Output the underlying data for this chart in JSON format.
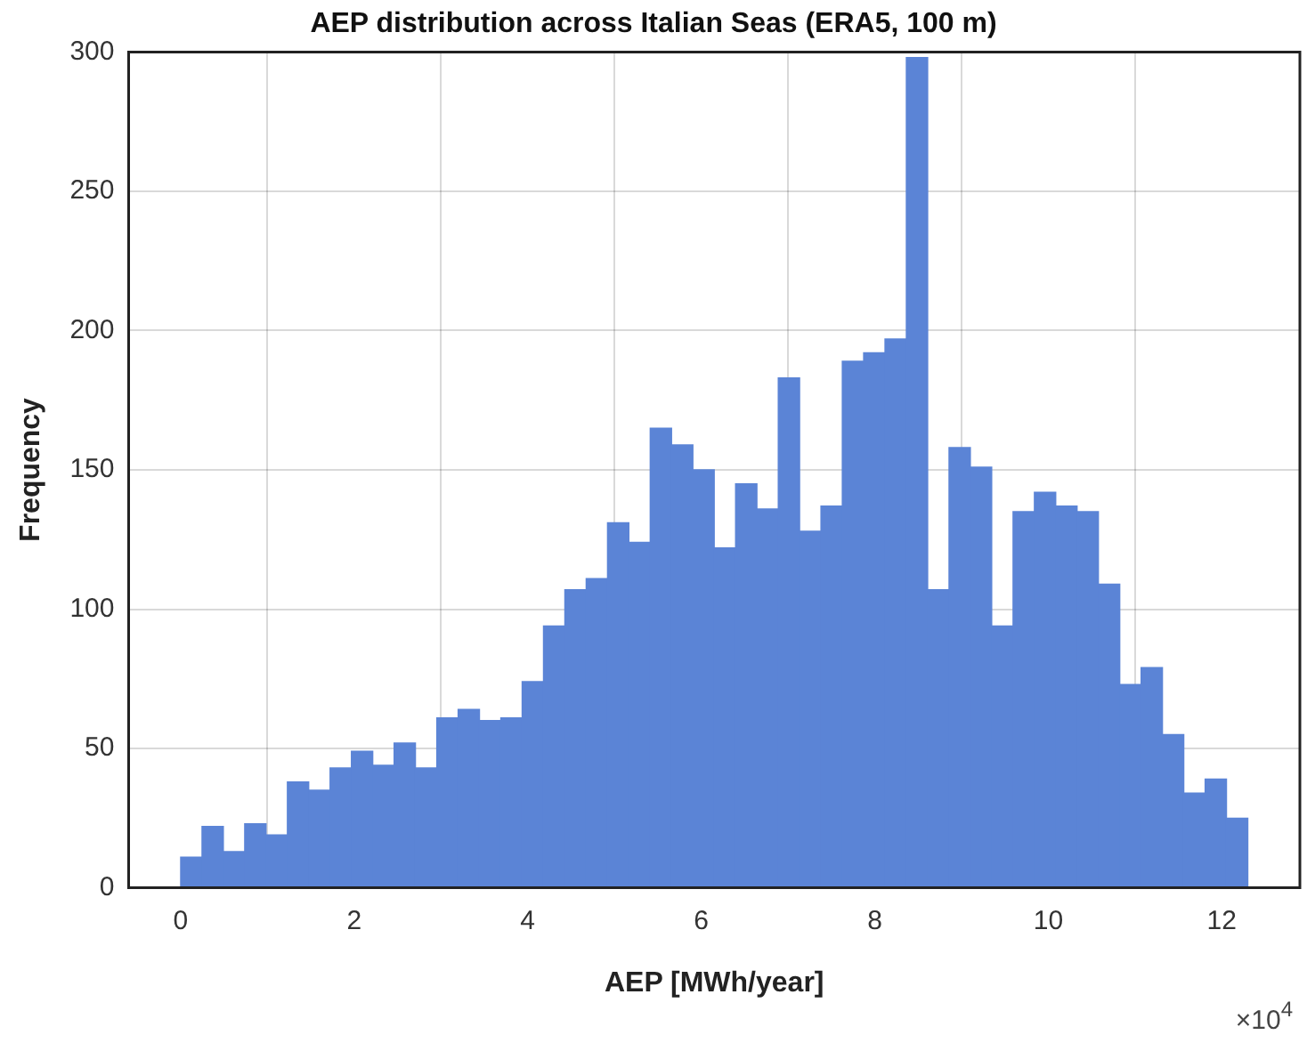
{
  "chart_data": {
    "type": "histogram",
    "title": "AEP distribution across Italian Seas (ERA5, 100 m)",
    "xlabel": "AEP [MWh/year]",
    "ylabel": "Frequency",
    "annotations": [
      "×10$^{4}$"
    ],
    "bins": [
      0,
      0.246,
      0.492,
      0.738,
      0.984,
      1.23,
      1.476,
      1.722,
      1.968,
      2.214,
      2.46,
      2.706,
      2.952,
      3.198,
      3.444,
      3.69,
      3.936,
      4.182,
      4.428,
      4.674,
      4.92,
      5.166,
      5.412,
      5.658,
      5.904,
      6.15,
      6.396,
      6.642,
      6.888,
      7.134,
      7.38,
      7.626,
      7.872,
      8.118,
      8.364,
      8.61,
      8.856,
      9.102,
      9.348,
      9.594,
      9.84,
      10.086,
      10.332,
      10.578,
      10.824,
      11.07,
      11.316,
      11.562,
      11.808,
      12.054,
      12.3
    ],
    "values": [
      11,
      22,
      13,
      23,
      19,
      38,
      35,
      43,
      49,
      44,
      52,
      43,
      61,
      64,
      60,
      61,
      74,
      94,
      107,
      111,
      131,
      124,
      165,
      159,
      150,
      122,
      145,
      136,
      183,
      128,
      137,
      189,
      192,
      197,
      298,
      107,
      158,
      151,
      94,
      135,
      142,
      137,
      135,
      109,
      73,
      79,
      55,
      34,
      39,
      25
    ],
    "color": "#5b84d6",
    "xlim": [
      -0.6,
      12.9
    ],
    "xticks": [
      0,
      2,
      4,
      6,
      8,
      10,
      12
    ],
    "ylim": [
      0,
      300
    ],
    "yticks": [
      0,
      50,
      100,
      150,
      200,
      250,
      300
    ],
    "grid": true
  }
}
